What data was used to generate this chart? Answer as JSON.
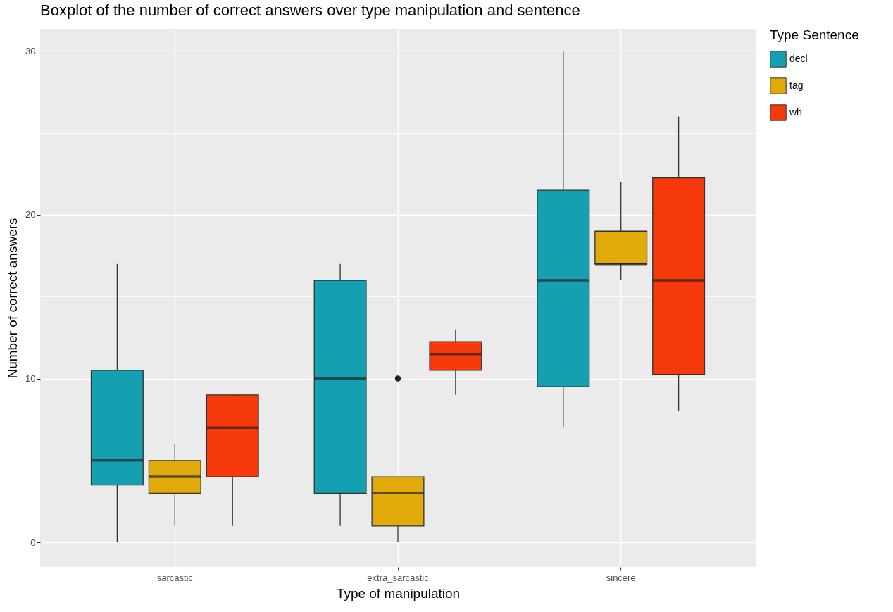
{
  "chart_data": {
    "type": "box",
    "title": "Boxplot of the number of correct answers over type manipulation and sentence",
    "xlabel": "Type of manipulation",
    "ylabel": "Number of correct answers",
    "legend_title": "Type Sentence",
    "legend": "right",
    "grid": true,
    "categories": [
      "sarcastic",
      "extra_sarcastic",
      "sincere"
    ],
    "ylim": [
      -1.5,
      31.35
    ],
    "yticks": [
      0,
      {
        "value": 5,
        "label": null
      },
      10,
      {
        "value": 15,
        "label": null
      },
      20,
      {
        "value": 25,
        "label": null
      },
      30
    ],
    "series": [
      {
        "name": "decl",
        "color": "#14a0b0",
        "boxes": [
          {
            "low": 0,
            "q1": 3.5,
            "median": 5,
            "q3": 10.5,
            "high": 17
          },
          {
            "low": 1,
            "q1": 3,
            "median": 10,
            "q3": 16,
            "high": 17
          },
          {
            "low": 7,
            "q1": 9.5,
            "median": 16,
            "q3": 21.5,
            "high": 30
          }
        ]
      },
      {
        "name": "tag",
        "color": "#e0ab0a",
        "boxes": [
          {
            "low": 1,
            "q1": 3,
            "median": 4,
            "q3": 5,
            "high": 6
          },
          {
            "low": 0,
            "q1": 1,
            "median": 3,
            "q3": 4,
            "high": 4,
            "outliers": [
              10
            ]
          },
          {
            "low": 16,
            "q1": 17,
            "median": 17,
            "q3": 19,
            "high": 22
          }
        ]
      },
      {
        "name": "wh",
        "color": "#f5390b",
        "boxes": [
          {
            "low": 1,
            "q1": 4,
            "median": 7,
            "q3": 9,
            "high": 9
          },
          {
            "low": 9,
            "q1": 10.5,
            "median": 11.5,
            "q3": 12.25,
            "high": 13
          },
          {
            "low": 8,
            "q1": 10.25,
            "median": 16,
            "q3": 22.25,
            "high": 26
          }
        ]
      }
    ]
  }
}
